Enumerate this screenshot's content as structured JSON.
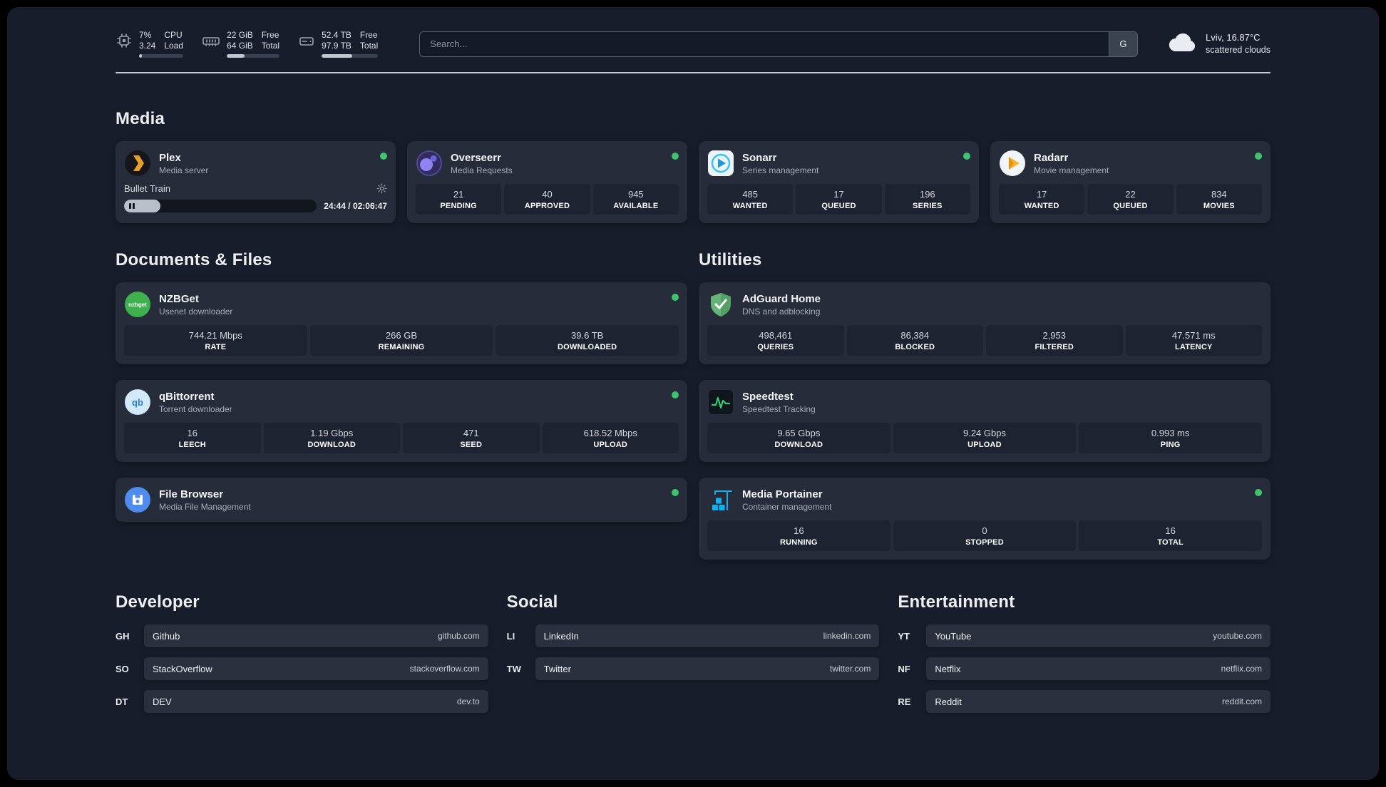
{
  "colors": {
    "page_bg": "#171d2a",
    "card_bg": "#262c39",
    "tile_bg": "#1d2330",
    "pill_bg": "#2a303e",
    "status_green": "#3ec46d",
    "text_primary": "#f1f3f6",
    "text_secondary": "#a6adbb",
    "divider": "#c6cbd4"
  },
  "header": {
    "stats": [
      {
        "icon": "cpu-icon",
        "col1": [
          "7%",
          "3.24"
        ],
        "col2": [
          "CPU",
          "Load"
        ],
        "progress": 7
      },
      {
        "icon": "ram-icon",
        "col1": [
          "22 GiB",
          "64 GiB"
        ],
        "col2": [
          "Free",
          "Total"
        ],
        "progress": 34
      },
      {
        "icon": "disk-icon",
        "col1": [
          "52.4 TB",
          "97.9 TB"
        ],
        "col2": [
          "Free",
          "Total"
        ],
        "progress": 54
      }
    ],
    "search": {
      "placeholder": "Search...",
      "button": "G"
    },
    "weather": {
      "icon": "cloud-icon",
      "location": "Lviv, 16.87°C",
      "condition": "scattered clouds"
    }
  },
  "media": {
    "title": "Media",
    "plex": {
      "icon": "plex-icon",
      "name": "Plex",
      "subtitle": "Media server",
      "online": true,
      "now_playing": "Bullet Train",
      "state": "paused",
      "progress": 19,
      "time": "24:44 / 02:06:47"
    },
    "cards": [
      {
        "icon": "overseerr-icon",
        "name": "Overseerr",
        "subtitle": "Media Requests",
        "online": true,
        "stats": [
          {
            "value": "21",
            "label": "PENDING"
          },
          {
            "value": "40",
            "label": "APPROVED"
          },
          {
            "value": "945",
            "label": "AVAILABLE"
          }
        ]
      },
      {
        "icon": "sonarr-icon",
        "name": "Sonarr",
        "subtitle": "Series management",
        "online": true,
        "stats": [
          {
            "value": "485",
            "label": "WANTED"
          },
          {
            "value": "17",
            "label": "QUEUED"
          },
          {
            "value": "196",
            "label": "SERIES"
          }
        ]
      },
      {
        "icon": "radarr-icon",
        "name": "Radarr",
        "subtitle": "Movie management",
        "online": true,
        "stats": [
          {
            "value": "17",
            "label": "WANTED"
          },
          {
            "value": "22",
            "label": "QUEUED"
          },
          {
            "value": "834",
            "label": "MOVIES"
          }
        ]
      }
    ]
  },
  "documents": {
    "title": "Documents & Files",
    "cards": [
      {
        "icon": "nzbget-icon",
        "name": "NZBGet",
        "subtitle": "Usenet downloader",
        "online": true,
        "stats": [
          {
            "value": "744.21 Mbps",
            "label": "RATE"
          },
          {
            "value": "266 GB",
            "label": "REMAINING"
          },
          {
            "value": "39.6 TB",
            "label": "DOWNLOADED"
          }
        ]
      },
      {
        "icon": "qbittorrent-icon",
        "name": "qBittorrent",
        "subtitle": "Torrent downloader",
        "online": true,
        "stats": [
          {
            "value": "16",
            "label": "LEECH"
          },
          {
            "value": "1.19 Gbps",
            "label": "DOWNLOAD"
          },
          {
            "value": "471",
            "label": "SEED"
          },
          {
            "value": "618.52 Mbps",
            "label": "UPLOAD"
          }
        ]
      },
      {
        "icon": "filebrowser-icon",
        "name": "File Browser",
        "subtitle": "Media File Management",
        "online": true
      }
    ]
  },
  "utilities": {
    "title": "Utilities",
    "cards": [
      {
        "icon": "adguard-icon",
        "name": "AdGuard Home",
        "subtitle": "DNS and adblocking",
        "online": false,
        "stats": [
          {
            "value": "498,461",
            "label": "QUERIES"
          },
          {
            "value": "86,384",
            "label": "BLOCKED"
          },
          {
            "value": "2,953",
            "label": "FILTERED"
          },
          {
            "value": "47.571 ms",
            "label": "LATENCY"
          }
        ]
      },
      {
        "icon": "speedtest-icon",
        "name": "Speedtest",
        "subtitle": "Speedtest Tracking",
        "online": false,
        "stats": [
          {
            "value": "9.65 Gbps",
            "label": "DOWNLOAD"
          },
          {
            "value": "9.24 Gbps",
            "label": "UPLOAD"
          },
          {
            "value": "0.993 ms",
            "label": "PING"
          }
        ]
      },
      {
        "icon": "portainer-icon",
        "name": "Media Portainer",
        "subtitle": "Container management",
        "online": true,
        "stats": [
          {
            "value": "16",
            "label": "RUNNING"
          },
          {
            "value": "0",
            "label": "STOPPED"
          },
          {
            "value": "16",
            "label": "TOTAL"
          }
        ]
      }
    ]
  },
  "bookmarks": [
    {
      "title": "Developer",
      "items": [
        {
          "abbr": "GH",
          "name": "Github",
          "url": "github.com"
        },
        {
          "abbr": "SO",
          "name": "StackOverflow",
          "url": "stackoverflow.com"
        },
        {
          "abbr": "DT",
          "name": "DEV",
          "url": "dev.to"
        }
      ]
    },
    {
      "title": "Social",
      "items": [
        {
          "abbr": "LI",
          "name": "LinkedIn",
          "url": "linkedin.com"
        },
        {
          "abbr": "TW",
          "name": "Twitter",
          "url": "twitter.com"
        }
      ]
    },
    {
      "title": "Entertainment",
      "items": [
        {
          "abbr": "YT",
          "name": "YouTube",
          "url": "youtube.com"
        },
        {
          "abbr": "NF",
          "name": "Netflix",
          "url": "netflix.com"
        },
        {
          "abbr": "RE",
          "name": "Reddit",
          "url": "reddit.com"
        }
      ]
    }
  ]
}
